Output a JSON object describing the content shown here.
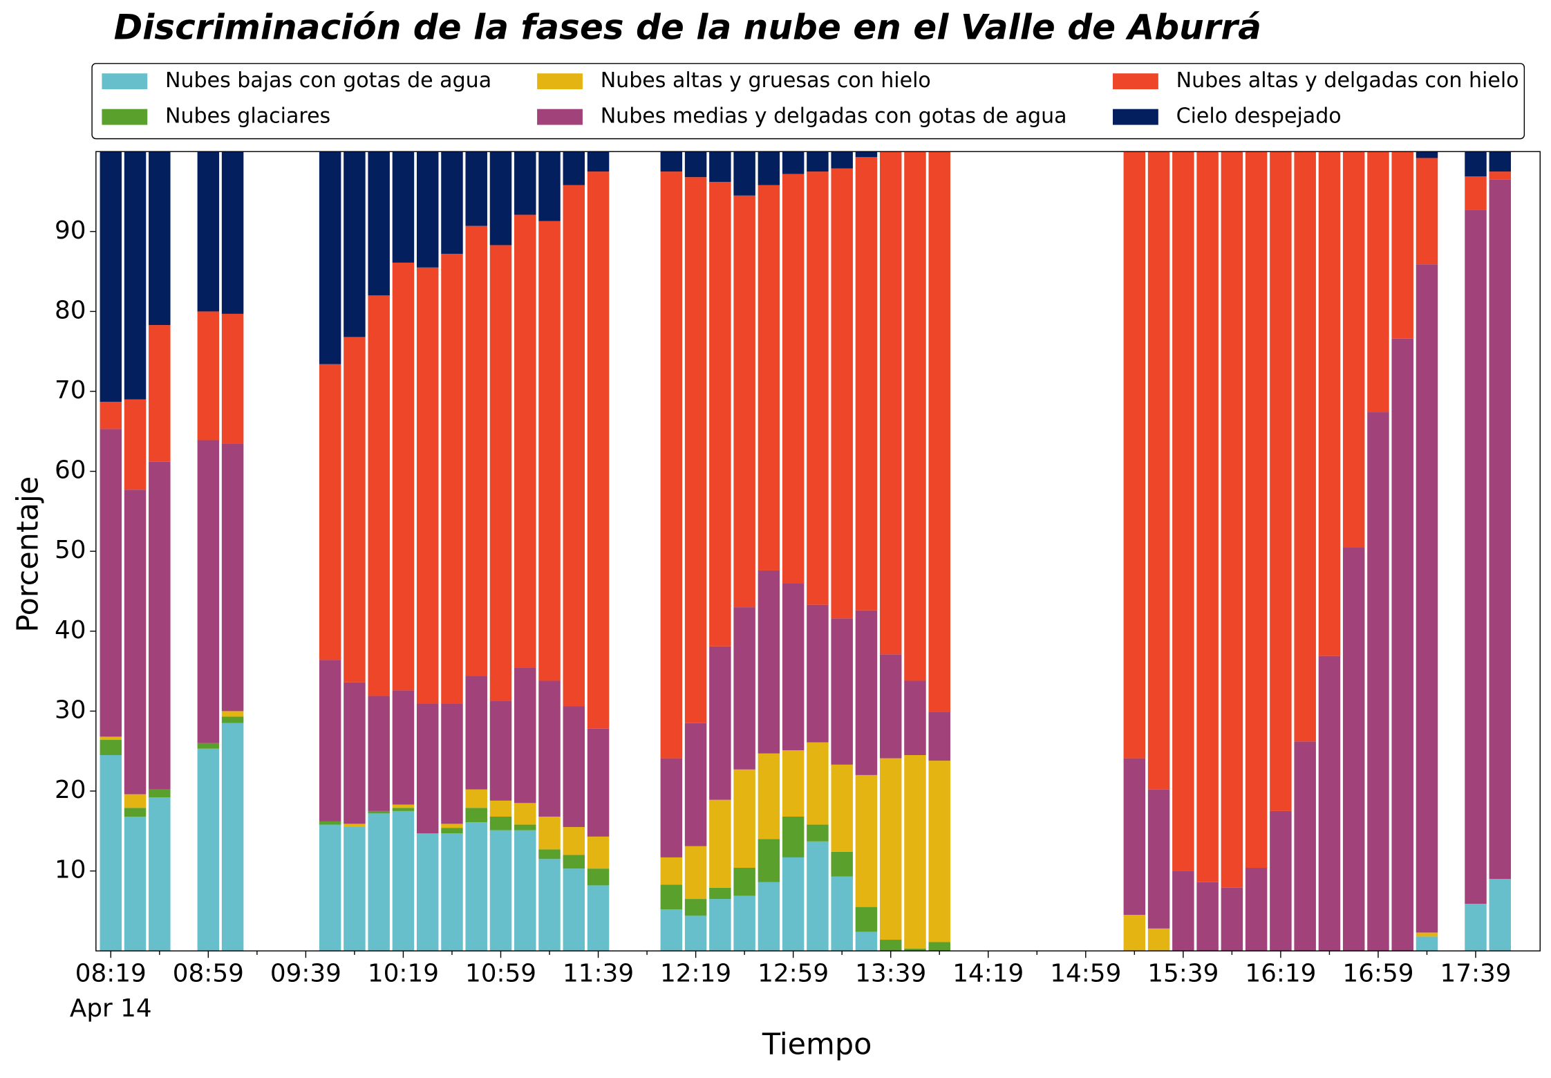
{
  "chart_data": {
    "type": "bar",
    "stacked": true,
    "title": "Discriminación de la fases de la nube en el Valle de Aburrá",
    "xlabel": "Tiempo",
    "ylabel": "Porcentaje",
    "date_label": "Apr 14",
    "categories": [
      "08:19",
      null,
      null,
      null,
      "08:59",
      null,
      null,
      null,
      "09:39",
      null,
      null,
      null,
      "10:19",
      null,
      null,
      null,
      "10:59",
      null,
      null,
      null,
      "11:39",
      null,
      null,
      null,
      "12:19",
      null,
      null,
      null,
      "12:59",
      null,
      null,
      null,
      "13:39",
      null,
      null,
      null,
      "14:19",
      null,
      null,
      null,
      "14:59",
      null,
      null,
      null,
      "15:39",
      null,
      null,
      null,
      "16:19",
      null,
      null,
      null,
      "16:59",
      null,
      null,
      null,
      "17:39",
      null
    ],
    "series": [
      {
        "name": "Nubes bajas con gotas de agua",
        "color": "#66bfcb",
        "values": [
          24.5,
          16.8,
          19.2,
          null,
          25.3,
          28.5,
          null,
          null,
          null,
          15.8,
          15.5,
          17.2,
          17.5,
          14.7,
          14.7,
          16.1,
          15.1,
          15.1,
          11.5,
          10.3,
          8.2,
          null,
          null,
          5.2,
          4.4,
          6.5,
          6.9,
          8.6,
          11.7,
          13.7,
          9.3,
          2.4,
          0,
          0,
          0,
          null,
          null,
          null,
          null,
          null,
          null,
          null,
          0,
          0,
          0,
          0,
          0,
          0,
          0,
          0,
          0,
          0,
          0,
          0,
          1.8,
          null,
          5.9,
          9.0
        ]
      },
      {
        "name": "Nubes glaciares",
        "color": "#5aa02c",
        "values": [
          1.9,
          1.1,
          1.0,
          null,
          0.7,
          0.8,
          null,
          null,
          null,
          0.4,
          0,
          0.3,
          0.4,
          0,
          0.7,
          1.8,
          1.7,
          0.7,
          1.2,
          1.7,
          2.1,
          null,
          null,
          3.1,
          2.1,
          1.4,
          3.5,
          5.4,
          5.1,
          2.1,
          3.1,
          3.1,
          1.4,
          0.3,
          1.1,
          null,
          null,
          null,
          null,
          null,
          null,
          null,
          0,
          0,
          0,
          0,
          0,
          0,
          0,
          0,
          0,
          0,
          0,
          0,
          0,
          null,
          0,
          0
        ]
      },
      {
        "name": "Nubes altas y gruesas con hielo",
        "color": "#e4b512",
        "values": [
          0.4,
          1.7,
          0,
          null,
          0,
          0.7,
          null,
          null,
          null,
          0,
          0.4,
          0,
          0.4,
          0,
          0.5,
          2.3,
          2.0,
          2.7,
          4.1,
          3.5,
          4.0,
          null,
          null,
          3.4,
          6.6,
          11.0,
          12.3,
          10.7,
          8.3,
          10.3,
          10.9,
          16.5,
          22.7,
          24.2,
          22.7,
          null,
          null,
          null,
          null,
          null,
          null,
          null,
          4.5,
          2.8,
          0,
          0,
          0,
          0,
          0,
          0,
          0,
          0,
          0,
          0,
          0.5,
          null,
          0,
          0
        ]
      },
      {
        "name": "Nubes medias y delgadas con gotas de agua",
        "color": "#a1427a",
        "values": [
          38.5,
          38.1,
          41.0,
          null,
          37.9,
          33.5,
          null,
          null,
          null,
          20.2,
          17.7,
          14.4,
          14.3,
          16.2,
          15.0,
          14.2,
          12.5,
          16.9,
          17.0,
          15.1,
          13.5,
          null,
          null,
          12.4,
          15.4,
          19.2,
          20.3,
          22.9,
          20.9,
          17.2,
          18.3,
          20.6,
          13.0,
          9.3,
          6.1,
          null,
          null,
          null,
          null,
          null,
          null,
          null,
          19.6,
          17.4,
          10.0,
          8.6,
          7.9,
          10.4,
          17.5,
          26.2,
          36.9,
          50.5,
          67.4,
          76.6,
          83.6,
          null,
          86.8,
          87.5
        ]
      },
      {
        "name": "Nubes altas y delgadas con hielo",
        "color": "#ee4628",
        "values": [
          3.4,
          11.3,
          17.1,
          null,
          16.1,
          16.2,
          null,
          null,
          null,
          37.0,
          43.2,
          50.1,
          53.5,
          54.6,
          56.3,
          56.3,
          57.0,
          56.7,
          57.5,
          65.2,
          69.7,
          null,
          null,
          73.4,
          68.3,
          58.1,
          51.5,
          48.2,
          51.2,
          54.2,
          56.3,
          56.7,
          62.9,
          66.2,
          70.1,
          null,
          null,
          null,
          null,
          null,
          null,
          null,
          75.9,
          79.8,
          90.0,
          91.4,
          92.1,
          89.6,
          82.5,
          73.8,
          63.1,
          49.5,
          32.6,
          23.4,
          13.3,
          null,
          4.2,
          1.0
        ]
      },
      {
        "name": "Cielo despejado",
        "color": "#041f5e",
        "values": [
          31.3,
          31.0,
          21.7,
          null,
          20.0,
          20.3,
          null,
          null,
          null,
          26.6,
          23.2,
          18.0,
          13.9,
          14.5,
          12.8,
          9.3,
          11.7,
          7.9,
          8.7,
          4.2,
          2.5,
          null,
          null,
          2.5,
          3.2,
          3.8,
          5.5,
          4.2,
          2.8,
          2.5,
          2.1,
          0.7,
          0,
          0,
          0,
          null,
          null,
          null,
          null,
          null,
          null,
          null,
          0,
          0,
          0,
          0,
          0,
          0,
          0,
          0,
          0,
          0,
          0,
          0,
          0.8,
          null,
          3.1,
          2.5
        ]
      }
    ],
    "ylim": [
      0,
      100
    ],
    "yticks": [
      10,
      20,
      30,
      40,
      50,
      60,
      70,
      80,
      90
    ],
    "grid": false,
    "legend": "top"
  }
}
